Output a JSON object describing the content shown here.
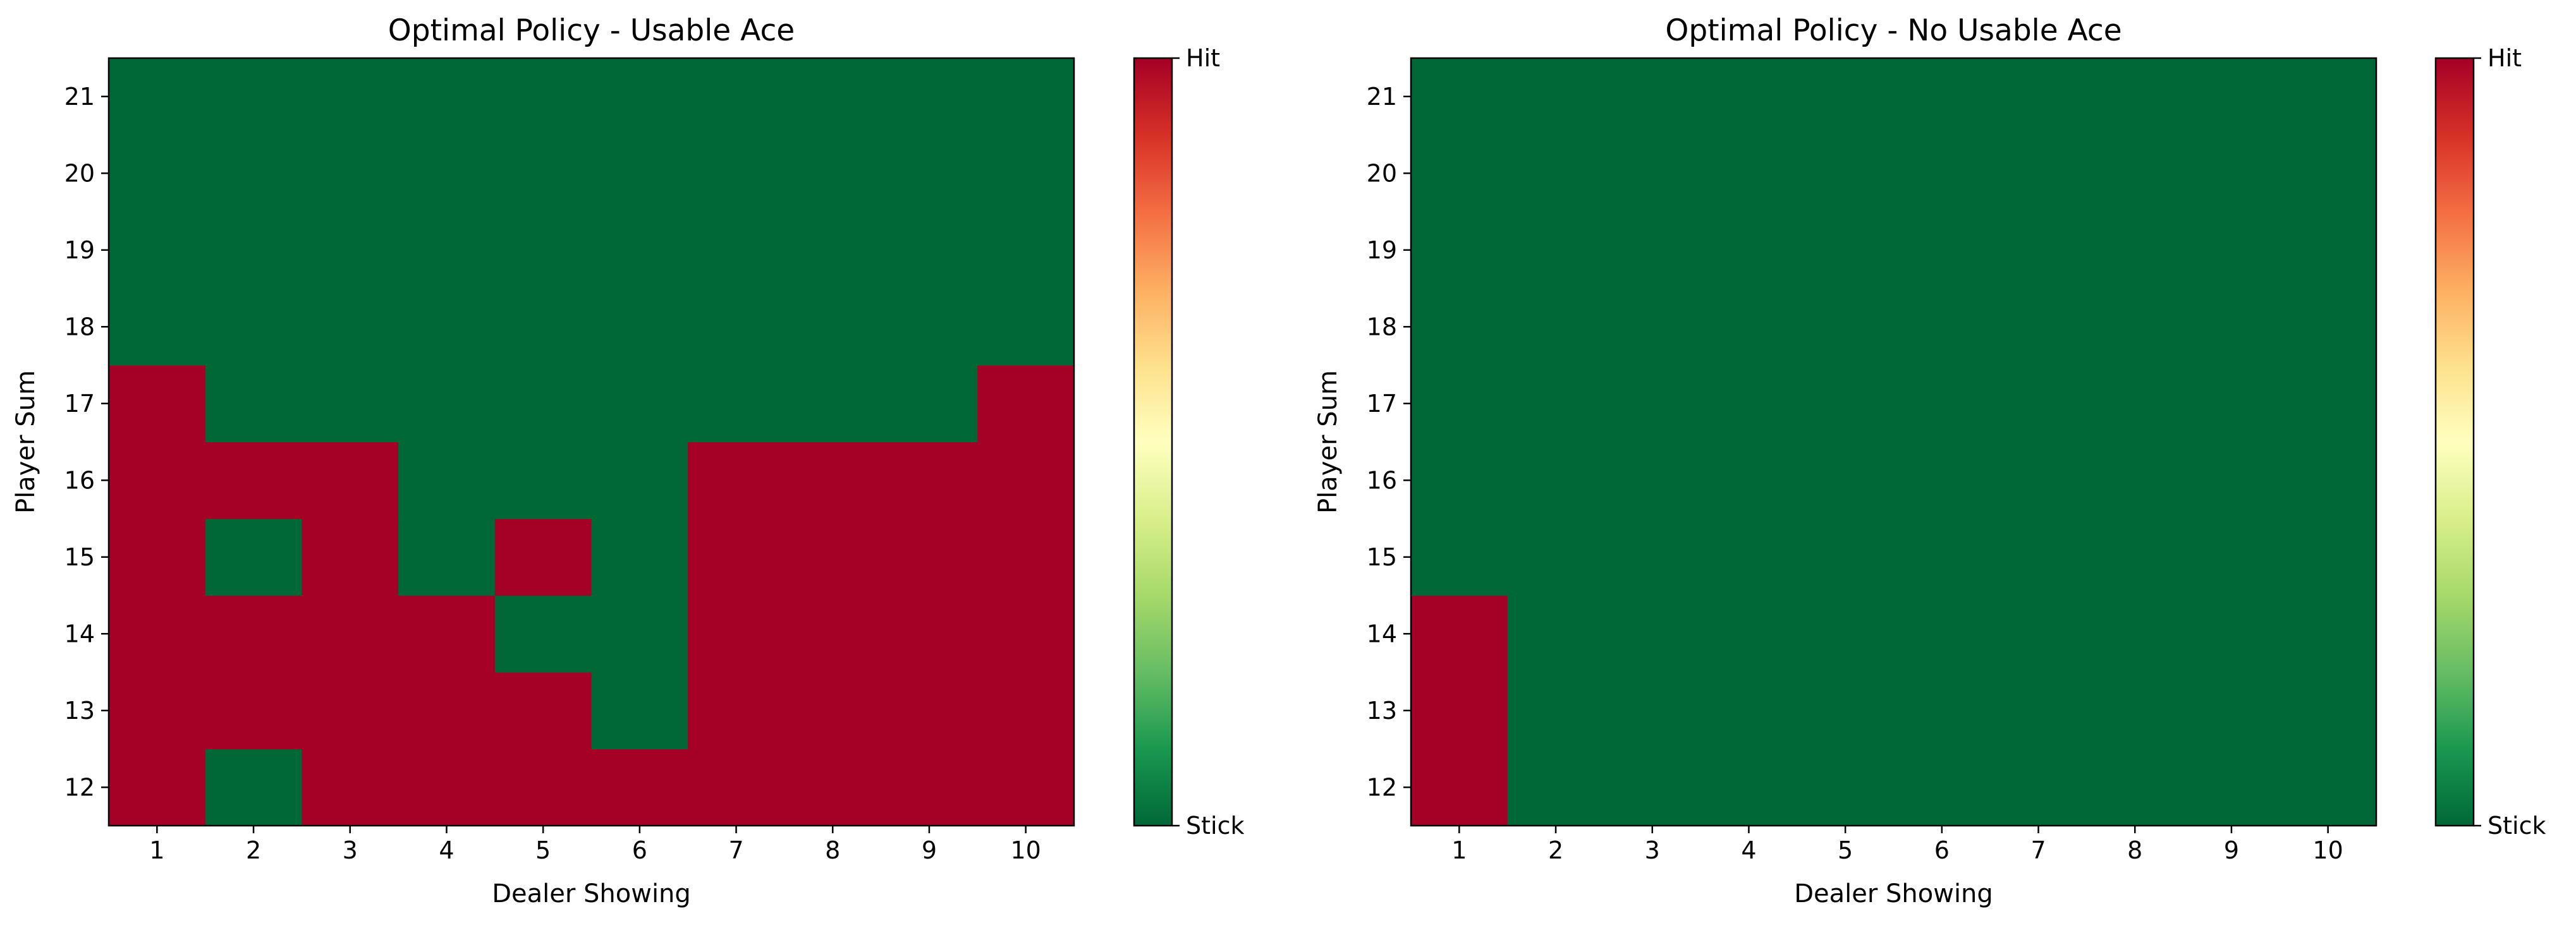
{
  "chart_data": [
    {
      "type": "heatmap",
      "title": "Optimal Policy - Usable Ace",
      "xlabel": "Dealer Showing",
      "ylabel": "Player Sum",
      "x": [
        1,
        2,
        3,
        4,
        5,
        6,
        7,
        8,
        9,
        10
      ],
      "y": [
        12,
        13,
        14,
        15,
        16,
        17,
        18,
        19,
        20,
        21
      ],
      "values": [
        [
          1,
          0,
          1,
          1,
          1,
          1,
          1,
          1,
          1,
          1
        ],
        [
          1,
          1,
          1,
          1,
          1,
          0,
          1,
          1,
          1,
          1
        ],
        [
          1,
          1,
          1,
          1,
          0,
          0,
          1,
          1,
          1,
          1
        ],
        [
          1,
          0,
          1,
          0,
          1,
          0,
          1,
          1,
          1,
          1
        ],
        [
          1,
          1,
          1,
          0,
          0,
          0,
          1,
          1,
          1,
          1
        ],
        [
          1,
          0,
          0,
          0,
          0,
          0,
          0,
          0,
          0,
          1
        ],
        [
          0,
          0,
          0,
          0,
          0,
          0,
          0,
          0,
          0,
          0
        ],
        [
          0,
          0,
          0,
          0,
          0,
          0,
          0,
          0,
          0,
          0
        ],
        [
          0,
          0,
          0,
          0,
          0,
          0,
          0,
          0,
          0,
          0
        ],
        [
          0,
          0,
          0,
          0,
          0,
          0,
          0,
          0,
          0,
          0
        ]
      ],
      "colormap": "RdYlGn_r",
      "colorbar": {
        "ticks": [
          0,
          1
        ],
        "ticklabels": [
          "Stick",
          "Hit"
        ]
      },
      "grid": false
    },
    {
      "type": "heatmap",
      "title": "Optimal Policy - No Usable Ace",
      "xlabel": "Dealer Showing",
      "ylabel": "Player Sum",
      "x": [
        1,
        2,
        3,
        4,
        5,
        6,
        7,
        8,
        9,
        10
      ],
      "y": [
        12,
        13,
        14,
        15,
        16,
        17,
        18,
        19,
        20,
        21
      ],
      "values": [
        [
          1,
          0,
          0,
          0,
          0,
          0,
          0,
          0,
          0,
          0
        ],
        [
          1,
          0,
          0,
          0,
          0,
          0,
          0,
          0,
          0,
          0
        ],
        [
          1,
          0,
          0,
          0,
          0,
          0,
          0,
          0,
          0,
          0
        ],
        [
          0,
          0,
          0,
          0,
          0,
          0,
          0,
          0,
          0,
          0
        ],
        [
          0,
          0,
          0,
          0,
          0,
          0,
          0,
          0,
          0,
          0
        ],
        [
          0,
          0,
          0,
          0,
          0,
          0,
          0,
          0,
          0,
          0
        ],
        [
          0,
          0,
          0,
          0,
          0,
          0,
          0,
          0,
          0,
          0
        ],
        [
          0,
          0,
          0,
          0,
          0,
          0,
          0,
          0,
          0,
          0
        ],
        [
          0,
          0,
          0,
          0,
          0,
          0,
          0,
          0,
          0,
          0
        ],
        [
          0,
          0,
          0,
          0,
          0,
          0,
          0,
          0,
          0,
          0
        ]
      ],
      "colormap": "RdYlGn_r",
      "colorbar": {
        "ticks": [
          0,
          1
        ],
        "ticklabels": [
          "Stick",
          "Hit"
        ]
      },
      "grid": false
    }
  ],
  "colors": {
    "hit": "#a50026",
    "stick": "#006837",
    "gradient": [
      "#006837",
      "#1a9850",
      "#66bd63",
      "#a6d96a",
      "#d9ef8b",
      "#ffffbf",
      "#fee08b",
      "#fdae61",
      "#f46d43",
      "#d73027",
      "#a50026"
    ]
  }
}
